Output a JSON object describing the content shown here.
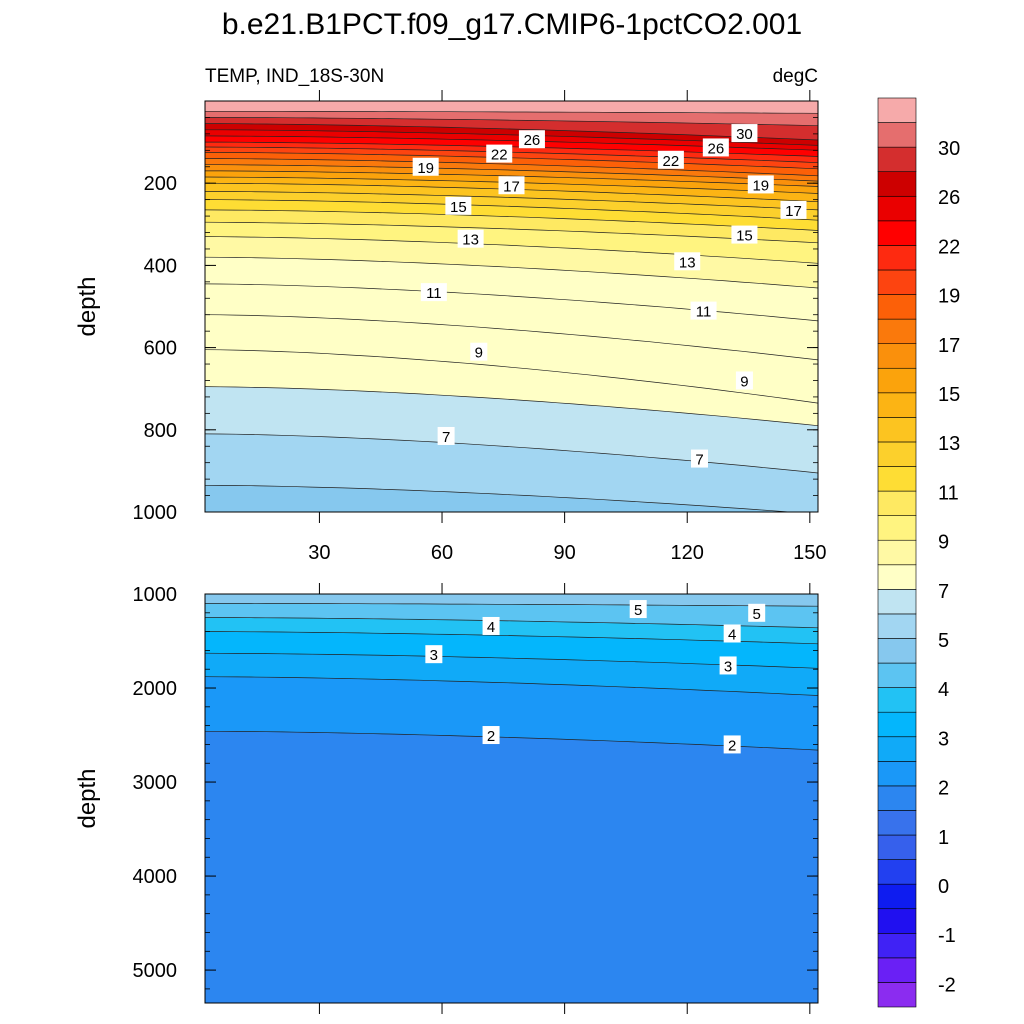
{
  "chart_data": {
    "type": "heatmap",
    "title": "b.e21.B1PCT.f09_g17.CMIP6-1pctCO2.001",
    "left_label": "TEMP, IND_18S-30N",
    "units": "degC",
    "x_range": [
      2,
      152
    ],
    "x_ticks": [
      30,
      60,
      90,
      120,
      150
    ],
    "x_ticklabels": [
      "30",
      "60",
      "90",
      "120",
      "150"
    ],
    "colorbar": {
      "colors": [
        "#8b2cf0",
        "#6a20f5",
        "#4022f5",
        "#2010f0",
        "#0e1cf0",
        "#2240f0",
        "#3660ec",
        "#3872ec",
        "#2c86f0",
        "#1a98f8",
        "#10aaf8",
        "#04b6fc",
        "#22c2f4",
        "#5cc4f2",
        "#86c8ee",
        "#a2d6f2",
        "#c0e4f2",
        "#ffffc6",
        "#fff9a4",
        "#fff480",
        "#fee962",
        "#fedd34",
        "#fcd02c",
        "#fcc420",
        "#fcb414",
        "#fba30c",
        "#fa900c",
        "#fa790c",
        "#fc6008",
        "#fd4410",
        "#fe2a10",
        "#ff0000",
        "#ea0000",
        "#cd0000",
        "#d42e2e",
        "#e56e6e",
        "#f6aaaa"
      ],
      "tick_labels": [
        "30",
        "26",
        "22",
        "19",
        "17",
        "15",
        "13",
        "11",
        "9",
        "7",
        "5",
        "4",
        "3",
        "2",
        "1",
        "0",
        "-1",
        "-2"
      ]
    },
    "panels": [
      {
        "name": "upper",
        "ylabel": "depth",
        "ylim": [
          0,
          1000
        ],
        "y_ticks": [
          200,
          400,
          600,
          800,
          1000
        ],
        "y_ticklabels": [
          "200",
          "400",
          "600",
          "800",
          "1000"
        ],
        "bands": [
          {
            "temp": 30,
            "color": "#f6aaaa"
          },
          {
            "temp": 29,
            "color": "#e56e6e"
          },
          {
            "temp": 28,
            "color": "#d42e2e"
          },
          {
            "temp": 27,
            "color": "#cd0000"
          },
          {
            "temp": 26,
            "color": "#ea0000"
          },
          {
            "temp": 25,
            "color": "#ff0000"
          },
          {
            "temp": 24,
            "color": "#fe2a10"
          },
          {
            "temp": 23,
            "color": "#fd4410"
          },
          {
            "temp": 22,
            "color": "#fc6008"
          },
          {
            "temp": 21,
            "color": "#fa790c"
          },
          {
            "temp": 20,
            "color": "#fa900c"
          },
          {
            "temp": 19,
            "color": "#fba30c"
          },
          {
            "temp": 18,
            "color": "#fcb414"
          },
          {
            "temp": 17,
            "color": "#fcc420"
          },
          {
            "temp": 16,
            "color": "#fcd02c"
          },
          {
            "temp": 15,
            "color": "#fedd34"
          },
          {
            "temp": 14,
            "color": "#fee962"
          },
          {
            "temp": 13,
            "color": "#fff480"
          },
          {
            "temp": 12,
            "color": "#fff9a4"
          },
          {
            "temp": 11,
            "color": "#ffffc6"
          },
          {
            "temp": 10,
            "color": "#ffffc6"
          },
          {
            "temp": 9,
            "color": "#ffffc6"
          },
          {
            "temp": 8,
            "color": "#ffffc6"
          },
          {
            "temp": 7,
            "color": "#c0e4f2"
          },
          {
            "temp": 6,
            "color": "#a2d6f2"
          },
          {
            "temp": 5,
            "color": "#86c8ee"
          }
        ],
        "isotherms": [
          {
            "temp": 29,
            "depth_left": 25,
            "depth_right": 30
          },
          {
            "temp": 28,
            "depth_left": 40,
            "depth_right": 60
          },
          {
            "temp": 27,
            "depth_left": 55,
            "depth_right": 95
          },
          {
            "temp": 26,
            "depth_left": 70,
            "depth_right": 108
          },
          {
            "temp": 25,
            "depth_left": 85,
            "depth_right": 120
          },
          {
            "temp": 24,
            "depth_left": 100,
            "depth_right": 135
          },
          {
            "temp": 23,
            "depth_left": 112,
            "depth_right": 150
          },
          {
            "temp": 22,
            "depth_left": 125,
            "depth_right": 165
          },
          {
            "temp": 21,
            "depth_left": 140,
            "depth_right": 182
          },
          {
            "temp": 20,
            "depth_left": 155,
            "depth_right": 195
          },
          {
            "temp": 19,
            "depth_left": 170,
            "depth_right": 208
          },
          {
            "temp": 18,
            "depth_left": 185,
            "depth_right": 225
          },
          {
            "temp": 17,
            "depth_left": 200,
            "depth_right": 245
          },
          {
            "temp": 16,
            "depth_left": 220,
            "depth_right": 265
          },
          {
            "temp": 15,
            "depth_left": 240,
            "depth_right": 290
          },
          {
            "temp": 14,
            "depth_left": 265,
            "depth_right": 315
          },
          {
            "temp": 13,
            "depth_left": 295,
            "depth_right": 345
          },
          {
            "temp": 12,
            "depth_left": 330,
            "depth_right": 395
          },
          {
            "temp": 11,
            "depth_left": 380,
            "depth_right": 455
          },
          {
            "temp": 10,
            "depth_left": 445,
            "depth_right": 535
          },
          {
            "temp": 9,
            "depth_left": 520,
            "depth_right": 630
          },
          {
            "temp": 8,
            "depth_left": 605,
            "depth_right": 735
          },
          {
            "temp": 7,
            "depth_left": 695,
            "depth_right": 790
          },
          {
            "temp": 6,
            "depth_left": 810,
            "depth_right": 905
          },
          {
            "temp": 5,
            "depth_left": 935,
            "depth_right": 1005
          }
        ],
        "labels": [
          {
            "text": "26",
            "x": 82,
            "depth": 93
          },
          {
            "text": "26",
            "x": 127,
            "depth": 113
          },
          {
            "text": "30",
            "x": 134,
            "depth": 78
          },
          {
            "text": "22",
            "x": 74,
            "depth": 128
          },
          {
            "text": "22",
            "x": 116,
            "depth": 143
          },
          {
            "text": "19",
            "x": 56,
            "depth": 160
          },
          {
            "text": "19",
            "x": 138,
            "depth": 203
          },
          {
            "text": "17",
            "x": 77,
            "depth": 205
          },
          {
            "text": "17",
            "x": 146,
            "depth": 265
          },
          {
            "text": "15",
            "x": 64,
            "depth": 255
          },
          {
            "text": "15",
            "x": 134,
            "depth": 325
          },
          {
            "text": "13",
            "x": 67,
            "depth": 335
          },
          {
            "text": "13",
            "x": 120,
            "depth": 390
          },
          {
            "text": "11",
            "x": 58,
            "depth": 465
          },
          {
            "text": "11",
            "x": 124,
            "depth": 510
          },
          {
            "text": "9",
            "x": 69,
            "depth": 610
          },
          {
            "text": "9",
            "x": 134,
            "depth": 680
          },
          {
            "text": "7",
            "x": 61,
            "depth": 815
          },
          {
            "text": "7",
            "x": 123,
            "depth": 870
          }
        ]
      },
      {
        "name": "lower",
        "ylabel": "depth",
        "ylim": [
          1000,
          5350
        ],
        "y_ticks": [
          1000,
          2000,
          3000,
          4000,
          5000
        ],
        "y_ticklabels": [
          "1000",
          "2000",
          "3000",
          "4000",
          "5000"
        ],
        "bands": [
          {
            "temp": 5,
            "color": "#86c8ee"
          },
          {
            "temp": 4.5,
            "color": "#5cc4f2"
          },
          {
            "temp": 4,
            "color": "#22c2f4"
          },
          {
            "temp": 3.5,
            "color": "#04b6fc"
          },
          {
            "temp": 3,
            "color": "#10aaf8"
          },
          {
            "temp": 2.5,
            "color": "#1a98f8"
          },
          {
            "temp": 2,
            "color": "#2c86f0"
          }
        ],
        "isotherms": [
          {
            "temp": 5,
            "depth_left": 1100,
            "depth_right": 1130
          },
          {
            "temp": 4.5,
            "depth_left": 1250,
            "depth_right": 1360
          },
          {
            "temp": 4,
            "depth_left": 1400,
            "depth_right": 1530
          },
          {
            "temp": 3.5,
            "depth_left": 1630,
            "depth_right": 1790
          },
          {
            "temp": 3,
            "depth_left": 1880,
            "depth_right": 2080
          },
          {
            "temp": 2.5,
            "depth_left": 2460,
            "depth_right": 2660
          }
        ],
        "labels": [
          {
            "text": "5",
            "x": 108,
            "depth": 1160
          },
          {
            "text": "5",
            "x": 137,
            "depth": 1200
          },
          {
            "text": "4",
            "x": 72,
            "depth": 1340
          },
          {
            "text": "4",
            "x": 131,
            "depth": 1420
          },
          {
            "text": "3",
            "x": 58,
            "depth": 1640
          },
          {
            "text": "3",
            "x": 130,
            "depth": 1760
          },
          {
            "text": "2",
            "x": 72,
            "depth": 2500
          },
          {
            "text": "2",
            "x": 131,
            "depth": 2600
          }
        ]
      }
    ]
  }
}
